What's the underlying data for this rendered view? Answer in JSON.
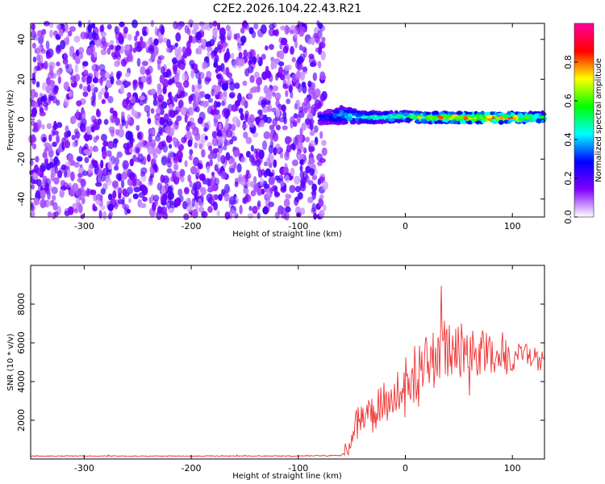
{
  "title": "C2E2.2026.104.22.43.R21",
  "chart_data": [
    {
      "type": "heatmap",
      "xlabel": "Height of straight line (km)",
      "ylabel": "Frequency (Hz)",
      "xlim": [
        -350,
        130
      ],
      "ylim": [
        -49,
        48
      ],
      "x_ticks": [
        -300,
        -200,
        -100,
        0,
        100
      ],
      "y_ticks": [
        40,
        20,
        0,
        -20,
        -40
      ],
      "colorbar": {
        "label": "Normalized spectral amplitude",
        "range": [
          0,
          1
        ],
        "ticks": [
          0.0,
          0.2,
          0.4,
          0.6,
          0.8
        ],
        "colormap": [
          "#ffffff",
          "#8000ff",
          "#0000ff",
          "#00ffff",
          "#00ff00",
          "#ffff00",
          "#ff0000",
          "#ff00a0"
        ]
      },
      "noise_region": {
        "x_range": [
          -350,
          -75
        ],
        "freq_range": [
          -49,
          48
        ],
        "typical_amplitude": [
          0.05,
          0.22
        ]
      },
      "signal_band": [
        {
          "x": -80,
          "freq": 0.5,
          "width": 6,
          "amplitude": 0.3
        },
        {
          "x": -60,
          "freq": 2.0,
          "width": 8,
          "amplitude": 0.45
        },
        {
          "x": -40,
          "freq": 1.0,
          "width": 6,
          "amplitude": 0.5
        },
        {
          "x": -20,
          "freq": 1.0,
          "width": 5,
          "amplitude": 0.55
        },
        {
          "x": 0,
          "freq": 1.5,
          "width": 5,
          "amplitude": 0.6
        },
        {
          "x": 20,
          "freq": 0.8,
          "width": 5,
          "amplitude": 0.75
        },
        {
          "x": 40,
          "freq": 0.8,
          "width": 5,
          "amplitude": 0.8
        },
        {
          "x": 60,
          "freq": 0.8,
          "width": 5,
          "amplitude": 0.85
        },
        {
          "x": 80,
          "freq": 0.8,
          "width": 5,
          "amplitude": 0.85
        },
        {
          "x": 100,
          "freq": 0.8,
          "width": 5,
          "amplitude": 0.8
        },
        {
          "x": 125,
          "freq": 0.8,
          "width": 5,
          "amplitude": 0.6
        }
      ]
    },
    {
      "type": "line",
      "xlabel": "Height of straight line (km)",
      "ylabel": "SNR (10 * v/v)",
      "xlim": [
        -350,
        130
      ],
      "ylim": [
        0,
        10000
      ],
      "x_ticks": [
        -300,
        -200,
        -100,
        0,
        100
      ],
      "y_ticks": [
        2000,
        4000,
        6000,
        8000
      ],
      "color": "#f03030",
      "series": [
        {
          "x": -350,
          "y": 150
        },
        {
          "x": -300,
          "y": 150
        },
        {
          "x": -250,
          "y": 150
        },
        {
          "x": -200,
          "y": 150
        },
        {
          "x": -150,
          "y": 150
        },
        {
          "x": -100,
          "y": 160
        },
        {
          "x": -60,
          "y": 180
        },
        {
          "x": -55,
          "y": 400
        },
        {
          "x": -50,
          "y": 1200
        },
        {
          "x": -45,
          "y": 2300
        },
        {
          "x": -40,
          "y": 2000
        },
        {
          "x": -35,
          "y": 2500
        },
        {
          "x": -30,
          "y": 2200
        },
        {
          "x": -25,
          "y": 2700
        },
        {
          "x": -20,
          "y": 3000
        },
        {
          "x": -15,
          "y": 2800
        },
        {
          "x": -10,
          "y": 3400
        },
        {
          "x": -5,
          "y": 3600
        },
        {
          "x": 0,
          "y": 4000
        },
        {
          "x": 5,
          "y": 4400
        },
        {
          "x": 10,
          "y": 4200
        },
        {
          "x": 15,
          "y": 4600
        },
        {
          "x": 20,
          "y": 4900
        },
        {
          "x": 25,
          "y": 5100
        },
        {
          "x": 30,
          "y": 5300
        },
        {
          "x": 35,
          "y": 5700
        },
        {
          "x": 40,
          "y": 5900
        },
        {
          "x": 45,
          "y": 5600
        },
        {
          "x": 50,
          "y": 5400
        },
        {
          "x": 55,
          "y": 5900
        },
        {
          "x": 60,
          "y": 5700
        },
        {
          "x": 65,
          "y": 5500
        },
        {
          "x": 70,
          "y": 5400
        },
        {
          "x": 75,
          "y": 5600
        },
        {
          "x": 80,
          "y": 5500
        },
        {
          "x": 85,
          "y": 5400
        },
        {
          "x": 90,
          "y": 5500
        },
        {
          "x": 95,
          "y": 5300
        },
        {
          "x": 100,
          "y": 5200
        },
        {
          "x": 105,
          "y": 5400
        },
        {
          "x": 110,
          "y": 5500
        },
        {
          "x": 115,
          "y": 5300
        },
        {
          "x": 120,
          "y": 5400
        },
        {
          "x": 125,
          "y": 4900
        },
        {
          "x": 130,
          "y": 5000
        }
      ],
      "spread": [
        {
          "x": -350,
          "y": 25
        },
        {
          "x": -60,
          "y": 30
        },
        {
          "x": -50,
          "y": 500
        },
        {
          "x": -30,
          "y": 900
        },
        {
          "x": 0,
          "y": 1300
        },
        {
          "x": 20,
          "y": 1500
        },
        {
          "x": 40,
          "y": 1700
        },
        {
          "x": 60,
          "y": 1400
        },
        {
          "x": 90,
          "y": 900
        },
        {
          "x": 110,
          "y": 600
        },
        {
          "x": 130,
          "y": 600
        }
      ]
    }
  ]
}
